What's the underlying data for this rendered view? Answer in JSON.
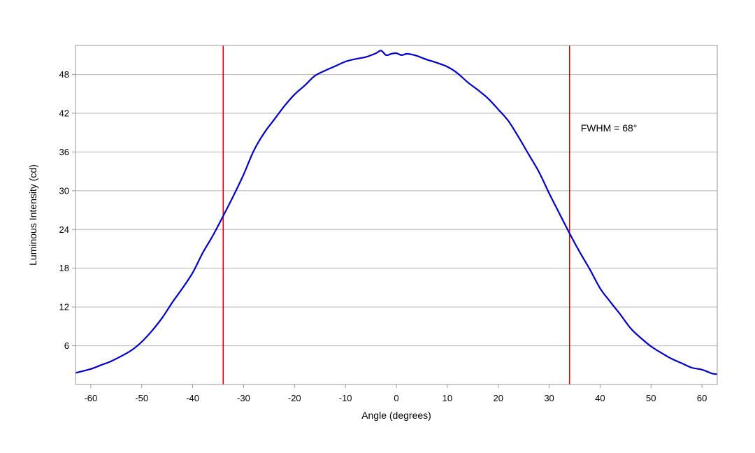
{
  "chart_data": {
    "type": "line",
    "title": "",
    "xlabel": "Angle (degrees)",
    "ylabel": "Luminous Intensity (cd)",
    "xlim": [
      -63,
      63
    ],
    "ylim": [
      0,
      52.5
    ],
    "x_ticks": [
      -60,
      -50,
      -40,
      -30,
      -20,
      -10,
      0,
      10,
      20,
      30,
      40,
      50,
      60
    ],
    "y_ticks": [
      6,
      12,
      18,
      24,
      30,
      36,
      42,
      48
    ],
    "x_tick_labels": [
      "-60",
      "-50",
      "-40",
      "-30",
      "-20",
      "-10",
      "0",
      "10",
      "20",
      "30",
      "40",
      "50",
      "60"
    ],
    "y_tick_labels": [
      "6",
      "12",
      "18",
      "24",
      "30",
      "36",
      "42",
      "48"
    ],
    "grid": "horizontal",
    "series": [
      {
        "color": "#0000cc",
        "x": [
          -63,
          -60,
          -58,
          -56,
          -54,
          -52,
          -50,
          -48,
          -46,
          -44,
          -42,
          -40,
          -38,
          -36,
          -34,
          -32,
          -30,
          -28,
          -26,
          -24,
          -22,
          -20,
          -18,
          -16,
          -14,
          -12,
          -10,
          -8,
          -6,
          -4,
          -3,
          -2,
          -1,
          0,
          1,
          2,
          3,
          4,
          5,
          6,
          8,
          10,
          12,
          14,
          16,
          18,
          20,
          22,
          24,
          26,
          28,
          30,
          32,
          34,
          36,
          38,
          40,
          42,
          44,
          46,
          48,
          50,
          52,
          54,
          56,
          58,
          60,
          62,
          63
        ],
        "y": [
          1.8,
          2.4,
          3.0,
          3.6,
          4.4,
          5.3,
          6.6,
          8.3,
          10.3,
          12.7,
          14.9,
          17.3,
          20.4,
          23.1,
          26.1,
          29.2,
          32.5,
          36.2,
          38.9,
          41.0,
          43.1,
          44.9,
          46.3,
          47.8,
          48.6,
          49.3,
          50.0,
          50.4,
          50.7,
          51.3,
          51.7,
          51.0,
          51.2,
          51.3,
          51.0,
          51.2,
          51.1,
          50.9,
          50.6,
          50.3,
          49.8,
          49.2,
          48.2,
          46.8,
          45.6,
          44.3,
          42.6,
          40.8,
          38.3,
          35.6,
          32.9,
          29.6,
          26.5,
          23.4,
          20.5,
          17.8,
          14.9,
          12.8,
          10.8,
          8.7,
          7.2,
          5.9,
          4.9,
          4.0,
          3.3,
          2.6,
          2.3,
          1.7,
          1.6
        ]
      }
    ],
    "vlines": [
      {
        "x": -34,
        "color": "#dd0000"
      },
      {
        "x": 34,
        "color": "#dd0000"
      }
    ],
    "annotation": {
      "text": "FWHM = 68°",
      "x": 36.2,
      "y": 39.2
    }
  }
}
